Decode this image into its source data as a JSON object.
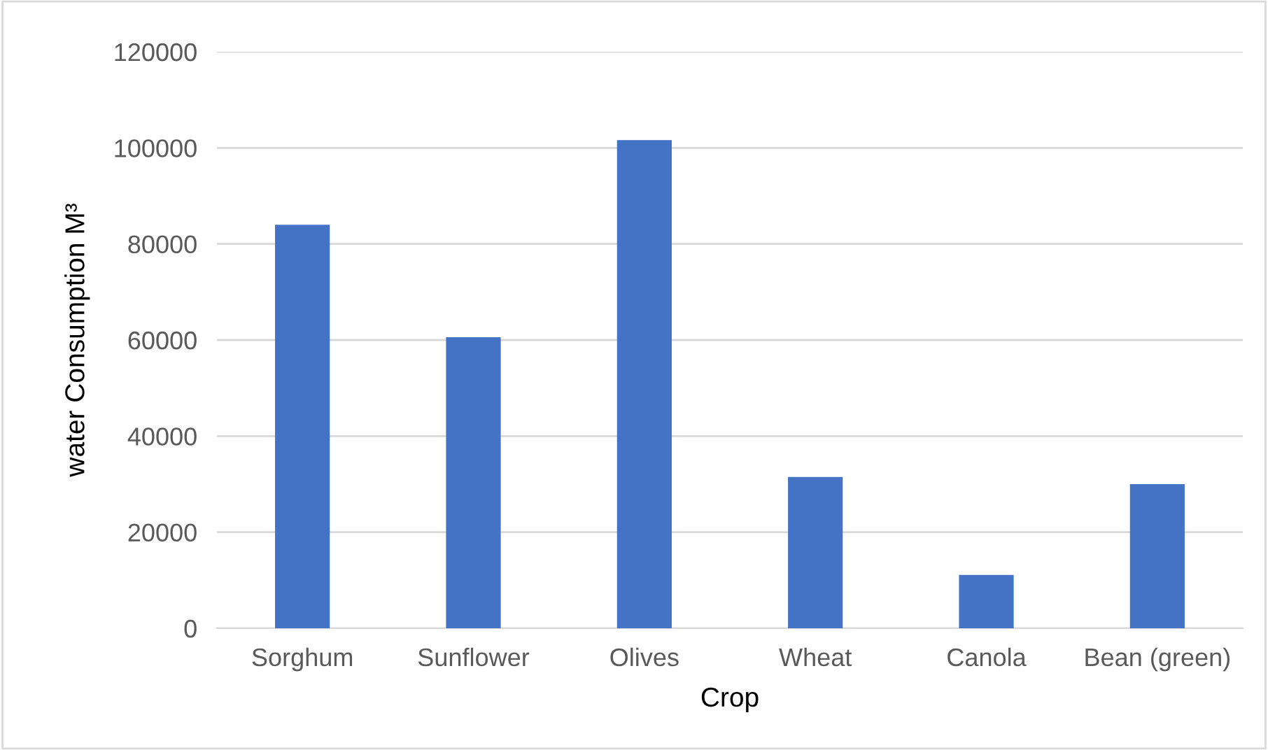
{
  "chart_data": {
    "type": "bar",
    "xlabel": "Crop",
    "ylabel": "water Consumption M³",
    "categories": [
      "Sorghum",
      "Sunflower",
      "Olives",
      "Wheat",
      "Canola",
      "Bean (green)"
    ],
    "values": [
      84000,
      60600,
      101600,
      31500,
      11100,
      30000
    ],
    "color": "#4472c4",
    "ylim": [
      0,
      120000
    ],
    "yticks": [
      0,
      20000,
      40000,
      60000,
      80000,
      100000,
      120000
    ],
    "grid": "y"
  }
}
